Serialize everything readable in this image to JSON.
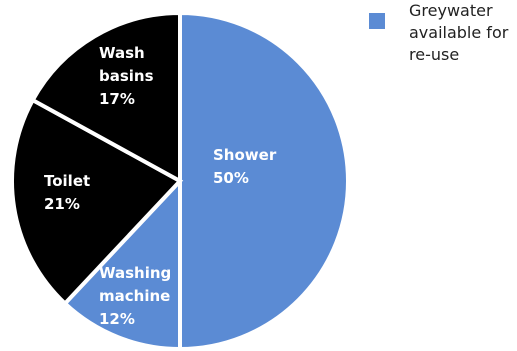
{
  "chart_data": {
    "type": "pie",
    "title": "",
    "categories": [
      "Shower",
      "Washing machine",
      "Toilet",
      "Wash basins"
    ],
    "values": [
      50,
      12,
      21,
      17
    ],
    "value_suffix": "%",
    "slices": [
      {
        "label_lines": [
          "Shower"
        ],
        "value_text": "50%",
        "value": 50,
        "color": "#5b8bd4",
        "greywater": true
      },
      {
        "label_lines": [
          "Washing",
          "machine"
        ],
        "value_text": "12%",
        "value": 12,
        "color": "#5b8bd4",
        "greywater": true
      },
      {
        "label_lines": [
          "Toilet"
        ],
        "value_text": "21%",
        "value": 21,
        "color": "#000000",
        "greywater": false
      },
      {
        "label_lines": [
          "Wash",
          "basins"
        ],
        "value_text": "17%",
        "value": 17,
        "color": "#000000",
        "greywater": false
      }
    ],
    "start_angle_deg": 0,
    "direction": "clockwise",
    "legend": {
      "placement": "top-right",
      "entries": [
        {
          "text": "Greywater available for re-use",
          "color": "#5b8bd4"
        }
      ]
    }
  }
}
